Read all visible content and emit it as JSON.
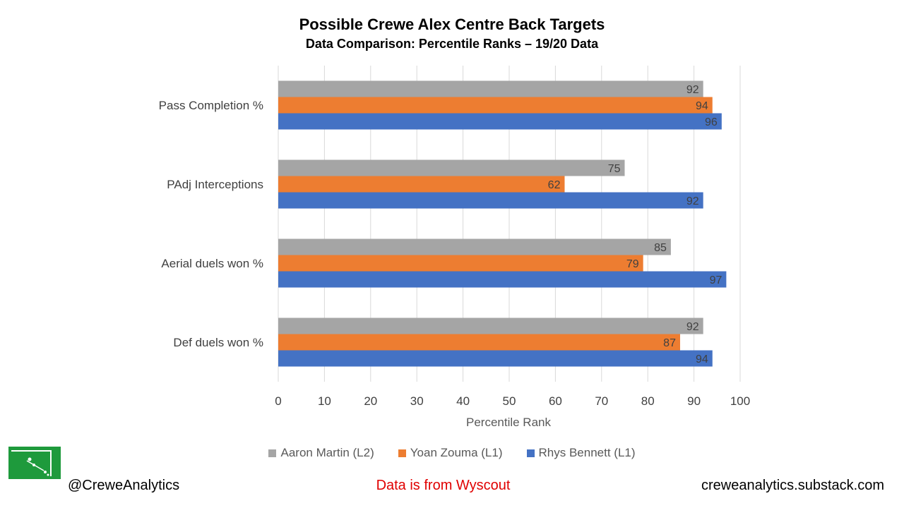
{
  "chart_data": {
    "type": "bar",
    "orientation": "horizontal",
    "title": "Possible Crewe Alex Centre Back Targets",
    "subtitle": "Data Comparison: Percentile Ranks – 19/20 Data",
    "categories": [
      "Pass Completion %",
      "PAdj Interceptions",
      "Aerial duels won %",
      "Def duels won %"
    ],
    "series": [
      {
        "name": "Aaron Martin (L2)",
        "color": "#a5a5a5",
        "values": [
          92,
          75,
          85,
          92
        ]
      },
      {
        "name": "Yoan Zouma (L1)",
        "color": "#ed7d31",
        "values": [
          94,
          62,
          79,
          87
        ]
      },
      {
        "name": "Rhys Bennett (L1)",
        "color": "#4472c4",
        "values": [
          96,
          92,
          97,
          94
        ]
      }
    ],
    "xlabel": "Percentile Rank",
    "xlim": [
      0,
      100
    ],
    "xticks": [
      0,
      10,
      20,
      30,
      40,
      50,
      60,
      70,
      80,
      90,
      100
    ],
    "grid": true,
    "legend_position": "bottom",
    "data_labels": true
  },
  "footer": {
    "handle": "@CreweAnalytics",
    "source": "Data is from Wyscout",
    "site": "creweanalytics.substack.com"
  },
  "logo": {
    "icon": "pitch-corner-icon",
    "color": "#1e9a3c"
  }
}
